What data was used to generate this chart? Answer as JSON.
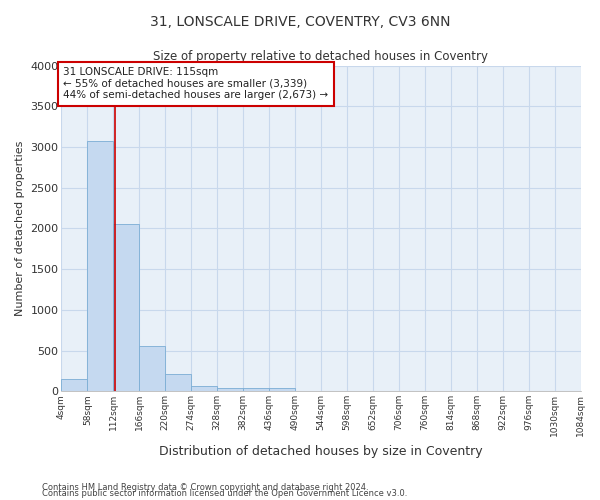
{
  "title": "31, LONSCALE DRIVE, COVENTRY, CV3 6NN",
  "subtitle": "Size of property relative to detached houses in Coventry",
  "xlabel": "Distribution of detached houses by size in Coventry",
  "ylabel": "Number of detached properties",
  "bar_color": "#c5d9f0",
  "bar_edgecolor": "#7badd4",
  "figure_background": "#ffffff",
  "axes_background": "#e8f0f8",
  "grid_color": "#c8d8ec",
  "property_size": 115,
  "vline_color": "#cc0000",
  "annotation_text": "31 LONSCALE DRIVE: 115sqm\n← 55% of detached houses are smaller (3,339)\n44% of semi-detached houses are larger (2,673) →",
  "annotation_box_facecolor": "#ffffff",
  "annotation_border_color": "#cc0000",
  "footer_line1": "Contains HM Land Registry data © Crown copyright and database right 2024.",
  "footer_line2": "Contains public sector information licensed under the Open Government Licence v3.0.",
  "bin_edges": [
    4,
    58,
    112,
    166,
    220,
    274,
    328,
    382,
    436,
    490,
    544,
    598,
    652,
    706,
    760,
    814,
    868,
    922,
    976,
    1030,
    1084
  ],
  "bar_heights": [
    150,
    3070,
    2060,
    560,
    210,
    68,
    38,
    40,
    35,
    0,
    0,
    0,
    0,
    0,
    0,
    0,
    0,
    0,
    0,
    0
  ],
  "ylim": [
    0,
    4000
  ],
  "yticks": [
    0,
    500,
    1000,
    1500,
    2000,
    2500,
    3000,
    3500,
    4000
  ],
  "figsize": [
    6.0,
    5.0
  ],
  "dpi": 100
}
